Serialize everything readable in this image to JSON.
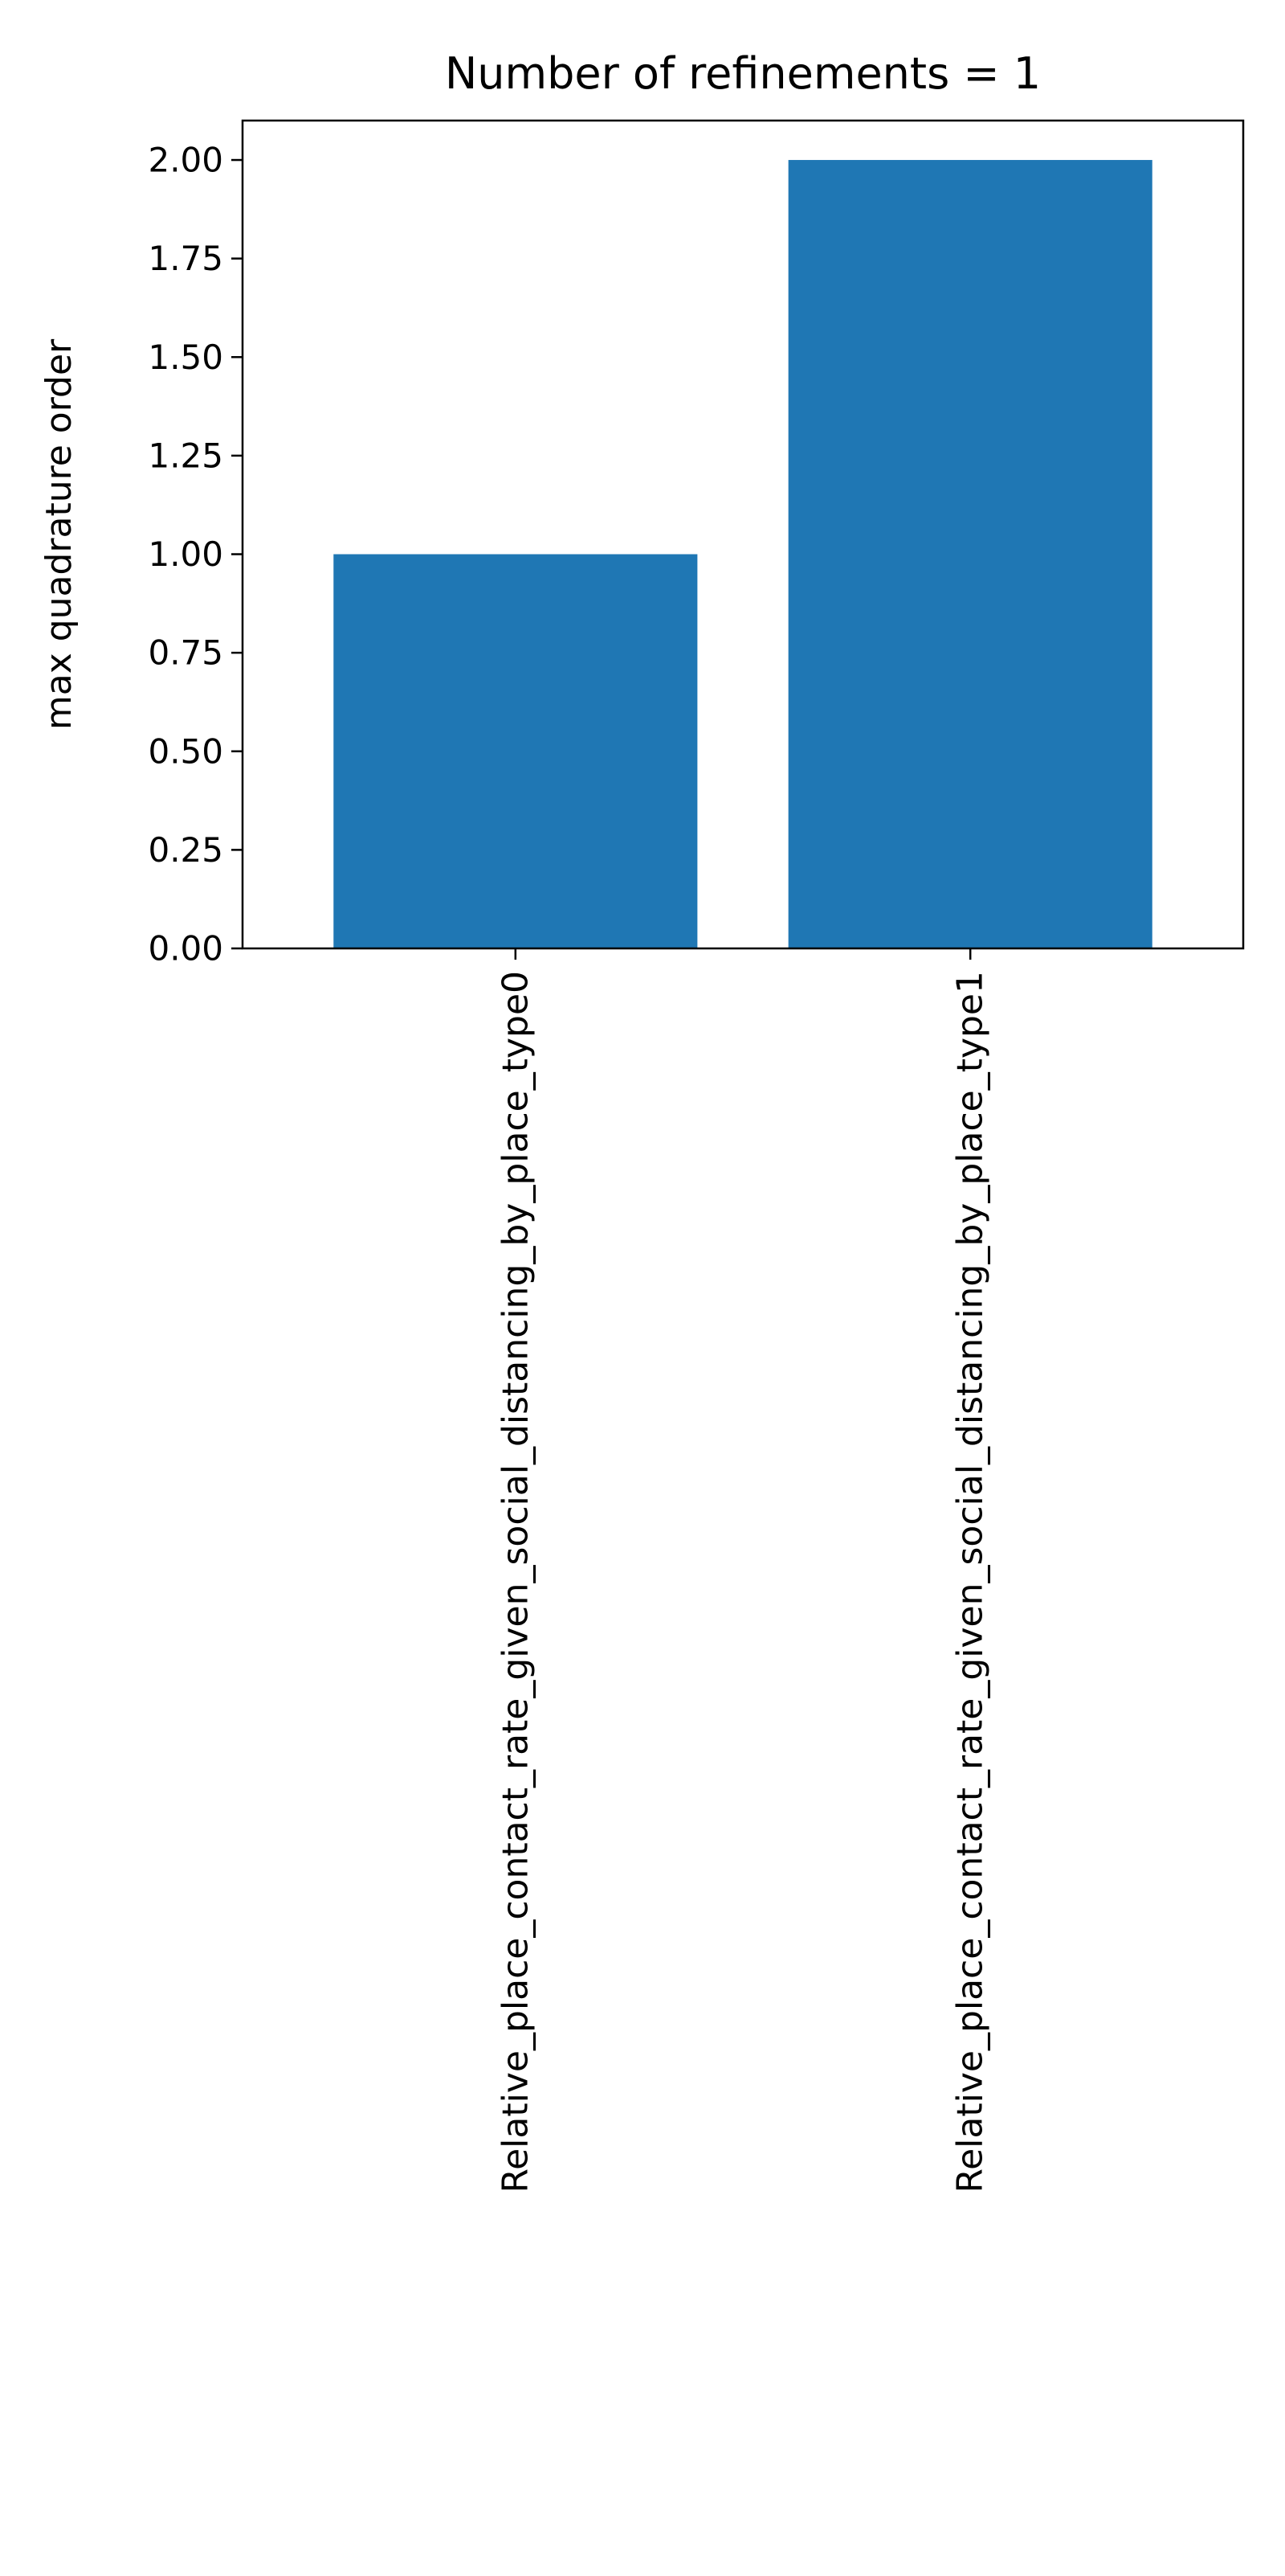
{
  "chart_data": {
    "type": "bar",
    "title": "Number of refinements = 1",
    "xlabel": "",
    "ylabel": "max quadrature order",
    "categories": [
      "Relative_place_contact_rate_given_social_distancing_by_place_type0",
      "Relative_place_contact_rate_given_social_distancing_by_place_type1"
    ],
    "values": [
      1.0,
      2.0
    ],
    "ylim": [
      0,
      2.1
    ],
    "yticks": [
      0.0,
      0.25,
      0.5,
      0.75,
      1.0,
      1.25,
      1.5,
      1.75,
      2.0
    ],
    "ytick_labels": [
      "0.00",
      "0.25",
      "0.50",
      "0.75",
      "1.00",
      "1.25",
      "1.50",
      "1.75",
      "2.00"
    ],
    "grid": false,
    "legend": "none",
    "bar_color": "#1f77b4"
  }
}
